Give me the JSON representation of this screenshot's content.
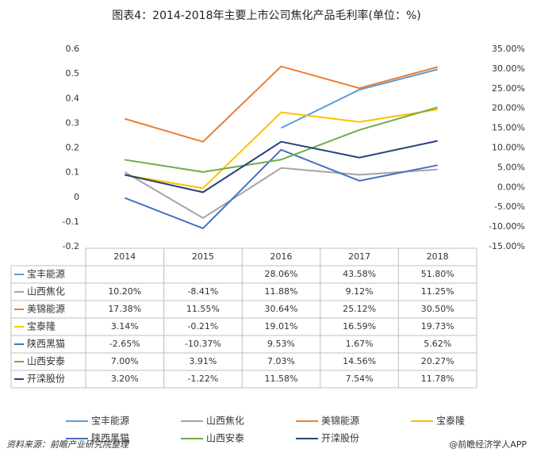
{
  "chart_data": {
    "type": "line",
    "title": "图表4：2014-2018年主要上市公司焦化产品毛利率(单位：%)",
    "categories": [
      "2014",
      "2015",
      "2016",
      "2017",
      "2018"
    ],
    "ylim": [
      -0.2,
      0.6
    ],
    "yticks": [
      -0.2,
      -0.1,
      0,
      0.1,
      0.2,
      0.3,
      0.4,
      0.5,
      0.6
    ],
    "y2lim": [
      -15,
      35
    ],
    "y2ticks": [
      {
        "value": -15,
        "label": "-15.00%"
      },
      {
        "value": -10,
        "label": "-10.00%"
      },
      {
        "value": -5,
        "label": "-5.00%"
      },
      {
        "value": 0,
        "label": "0.00%"
      },
      {
        "value": 5,
        "label": "5.00%"
      },
      {
        "value": 10,
        "label": "10.00%"
      },
      {
        "value": 15,
        "label": "15.00%"
      },
      {
        "value": 20,
        "label": "20.00%"
      },
      {
        "value": 25,
        "label": "25.00%"
      },
      {
        "value": 30,
        "label": "30.00%"
      },
      {
        "value": 35,
        "label": "35.00%"
      }
    ],
    "series": [
      {
        "name": "宝丰能源",
        "color": "#5b9bd5",
        "values": [
          null,
          null,
          0.2806,
          0.4358,
          0.518
        ],
        "value_labels": [
          null,
          null,
          "28.06%",
          "43.58%",
          "51.80%"
        ]
      },
      {
        "name": "山西焦化",
        "color": "#a5a5a5",
        "values": [
          0.102,
          -0.0841,
          0.1188,
          0.0912,
          0.1125
        ],
        "value_labels": [
          "10.20%",
          "-8.41%",
          "11.88%",
          "9.12%",
          "11.25%"
        ]
      },
      {
        "name": "美锦能源",
        "color": "#ed7d31",
        "axis": "y2",
        "values": [
          17.38,
          11.55,
          30.64,
          25.12,
          30.5
        ],
        "value_labels": [
          "17.38%",
          "11.55%",
          "30.64%",
          "25.12%",
          "30.50%"
        ]
      },
      {
        "name": "宝泰隆",
        "color": "#ffc000",
        "axis": "y2",
        "values": [
          3.14,
          -0.21,
          19.01,
          16.59,
          19.73
        ],
        "value_labels": [
          "3.14%",
          "-0.21%",
          "19.01%",
          "16.59%",
          "19.73%"
        ]
      },
      {
        "name": "陕西黑猫",
        "color": "#4472c4",
        "axis": "y2",
        "values": [
          -2.65,
          -10.37,
          9.53,
          1.67,
          5.62
        ],
        "value_labels": [
          "-2.65%",
          "-10.37%",
          "9.53%",
          "1.67%",
          "5.62%"
        ]
      },
      {
        "name": "山西安泰",
        "color": "#70ad47",
        "axis": "y2",
        "values": [
          7.0,
          3.91,
          7.03,
          14.56,
          20.27
        ],
        "value_labels": [
          "7.00%",
          "3.91%",
          "7.03%",
          "14.56%",
          "20.27%"
        ]
      },
      {
        "name": "开滦股份",
        "color": "#264478",
        "axis": "y2",
        "values": [
          3.2,
          -1.22,
          11.58,
          7.54,
          11.78
        ],
        "value_labels": [
          "3.20%",
          "-1.22%",
          "11.58%",
          "7.54%",
          "11.78%"
        ]
      }
    ],
    "source": "资料来源：前瞻产业研究院整理",
    "credit": "@前瞻经济学人APP"
  }
}
